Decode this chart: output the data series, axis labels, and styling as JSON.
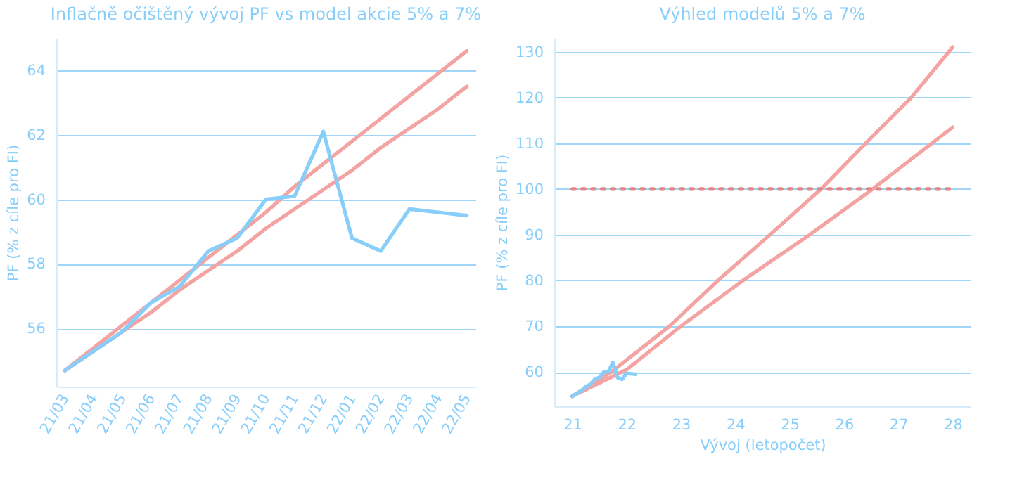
{
  "chart_data": [
    {
      "type": "line",
      "title": "Inflačně očištěný vývoj PF vs model akcie 5% a 7%",
      "ylabel": "PF (% z cíle pro FI)",
      "categories": [
        "21/03",
        "21/04",
        "21/05",
        "21/06",
        "21/07",
        "21/08",
        "21/09",
        "21/10",
        "21/11",
        "21/12",
        "22/01",
        "22/02",
        "22/03",
        "22/04",
        "22/05"
      ],
      "series": [
        {
          "color": "#f4a3a3",
          "values": [
            54.7,
            55.4,
            56.1,
            56.8,
            57.5,
            58.2,
            58.9,
            59.6,
            60.4,
            61.1,
            61.8,
            62.5,
            63.2,
            63.9,
            64.6
          ]
        },
        {
          "color": "#f4a3a3",
          "values": [
            54.7,
            55.3,
            55.9,
            56.5,
            57.2,
            57.8,
            58.4,
            59.1,
            59.7,
            60.3,
            60.9,
            61.6,
            62.2,
            62.8,
            63.5
          ]
        },
        {
          "color": "#87cefa",
          "values": [
            54.7,
            55.3,
            55.9,
            56.8,
            57.3,
            58.4,
            58.8,
            60.0,
            60.1,
            62.1,
            58.8,
            58.4,
            59.7,
            59.6,
            59.5
          ]
        }
      ],
      "ylim": [
        54.2,
        65
      ],
      "yticks": [
        56,
        58,
        60,
        62,
        64
      ],
      "grid": "y",
      "marker": "none",
      "line_style": "solid"
    },
    {
      "type": "line",
      "title": "Výhled modelů 5% a 7%",
      "xlabel": "Vývoj (letopočet)",
      "ylabel": "PF (% z cíle pro FI)",
      "series": [
        {
          "color": "#f4a3a3",
          "x": [
            21,
            21.72,
            22.79,
            23.68,
            24.64,
            25.58,
            26.4,
            27.24,
            28
          ],
          "values": [
            54.7,
            60,
            70,
            80,
            90,
            100,
            110,
            120,
            131
          ]
        },
        {
          "color": "#f4a3a3",
          "x": [
            21,
            22,
            23,
            24.14,
            25.37,
            26.53,
            28
          ],
          "values": [
            54.7,
            60.5,
            70,
            80,
            90,
            100,
            113.5
          ]
        },
        {
          "color": "#e08888",
          "line_style": "dotted",
          "x": [
            21,
            28
          ],
          "values": [
            100,
            100
          ]
        },
        {
          "color": "#87cefa",
          "x": [
            21,
            21.083,
            21.167,
            21.25,
            21.333,
            21.417,
            21.5,
            21.583,
            21.667,
            21.75,
            21.833,
            21.917,
            22,
            22.083,
            22.167
          ],
          "values": [
            54.7,
            55.3,
            55.9,
            56.8,
            57.3,
            58.4,
            58.8,
            60.0,
            60.1,
            62.1,
            58.8,
            58.4,
            59.7,
            59.6,
            59.5
          ]
        }
      ],
      "xlim": [
        20.67,
        28.33
      ],
      "xticks": [
        21,
        22,
        23,
        24,
        25,
        26,
        27,
        28
      ],
      "ylim": [
        52.5,
        133
      ],
      "yticks": [
        60,
        70,
        80,
        90,
        100,
        110,
        120,
        130
      ],
      "grid": "y",
      "marker": "none",
      "line_style": "solid"
    }
  ]
}
